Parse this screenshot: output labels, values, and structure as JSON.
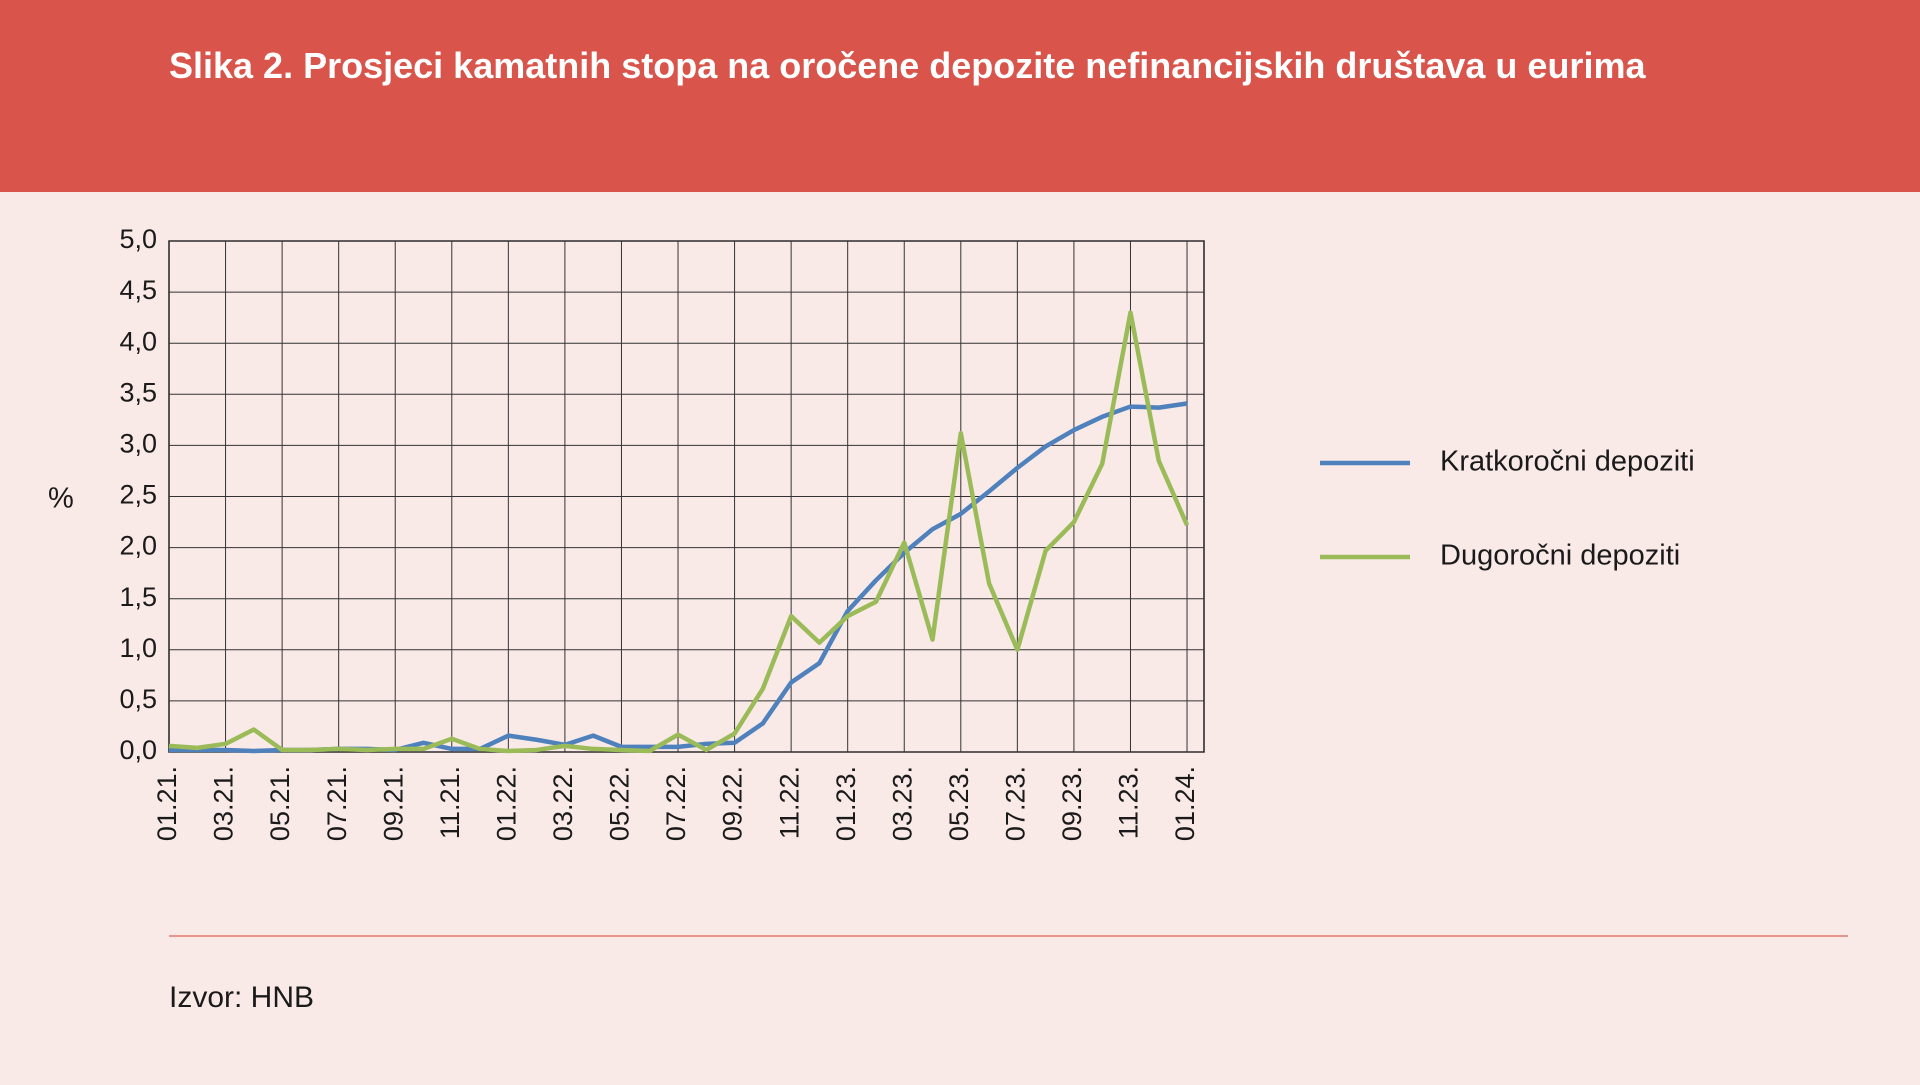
{
  "chart_data": {
    "type": "line",
    "title": "Slika 2. Prosjeci kamatnih stopa na oročene depozite nefinancijskih društava u eurima",
    "y_label": "%",
    "source": "Izvor: HNB",
    "categories": [
      "01.21.",
      null,
      "03.21.",
      null,
      "05.21.",
      null,
      "07.21.",
      null,
      "09.21.",
      null,
      "11.21.",
      null,
      "01.22.",
      null,
      "03.22.",
      null,
      "05.22.",
      null,
      "07.22.",
      null,
      "09.22.",
      null,
      "11.22.",
      null,
      "01.23.",
      null,
      "03.23.",
      null,
      "05.23.",
      null,
      "07.23.",
      null,
      "09.23.",
      null,
      "11.23.",
      null,
      "01.24."
    ],
    "series": [
      {
        "name": "Kratkoročni depoziti",
        "color": "#4f81bd",
        "values": [
          0.02,
          0.02,
          0.02,
          0.01,
          0.02,
          0.02,
          0.03,
          0.03,
          0.02,
          0.09,
          0.03,
          0.03,
          0.16,
          0.12,
          0.07,
          0.16,
          0.05,
          0.05,
          0.05,
          0.08,
          0.09,
          0.28,
          0.68,
          0.87,
          1.38,
          1.68,
          1.95,
          2.18,
          2.33,
          2.55,
          2.78,
          2.99,
          3.15,
          3.28,
          3.38,
          3.37,
          3.41
        ]
      },
      {
        "name": "Dugoročni depoziti",
        "color": "#9bbb59",
        "values": [
          0.06,
          0.04,
          0.08,
          0.22,
          0.02,
          0.02,
          0.03,
          0.02,
          0.03,
          0.03,
          0.13,
          0.03,
          0.01,
          0.02,
          0.06,
          0.03,
          0.02,
          0.01,
          0.17,
          0.02,
          0.18,
          0.62,
          1.33,
          1.07,
          1.33,
          1.47,
          2.05,
          1.1,
          3.12,
          1.65,
          1.0,
          1.97,
          2.25,
          2.82,
          4.3,
          2.85,
          2.22
        ]
      }
    ],
    "ylim": [
      0,
      5
    ],
    "yticks": [
      {
        "value": 0,
        "label": "0,0"
      },
      {
        "value": 0.5,
        "label": "0,5"
      },
      {
        "value": 1,
        "label": "1,0"
      },
      {
        "value": 1.5,
        "label": "1,5"
      },
      {
        "value": 2,
        "label": "2,0"
      },
      {
        "value": 2.5,
        "label": "2,5"
      },
      {
        "value": 3,
        "label": "3,0"
      },
      {
        "value": 3.5,
        "label": "3,5"
      },
      {
        "value": 4,
        "label": "4,0"
      },
      {
        "value": 4.5,
        "label": "4,5"
      },
      {
        "value": 5,
        "label": "5,0"
      }
    ],
    "grid": true,
    "legend": "right"
  }
}
